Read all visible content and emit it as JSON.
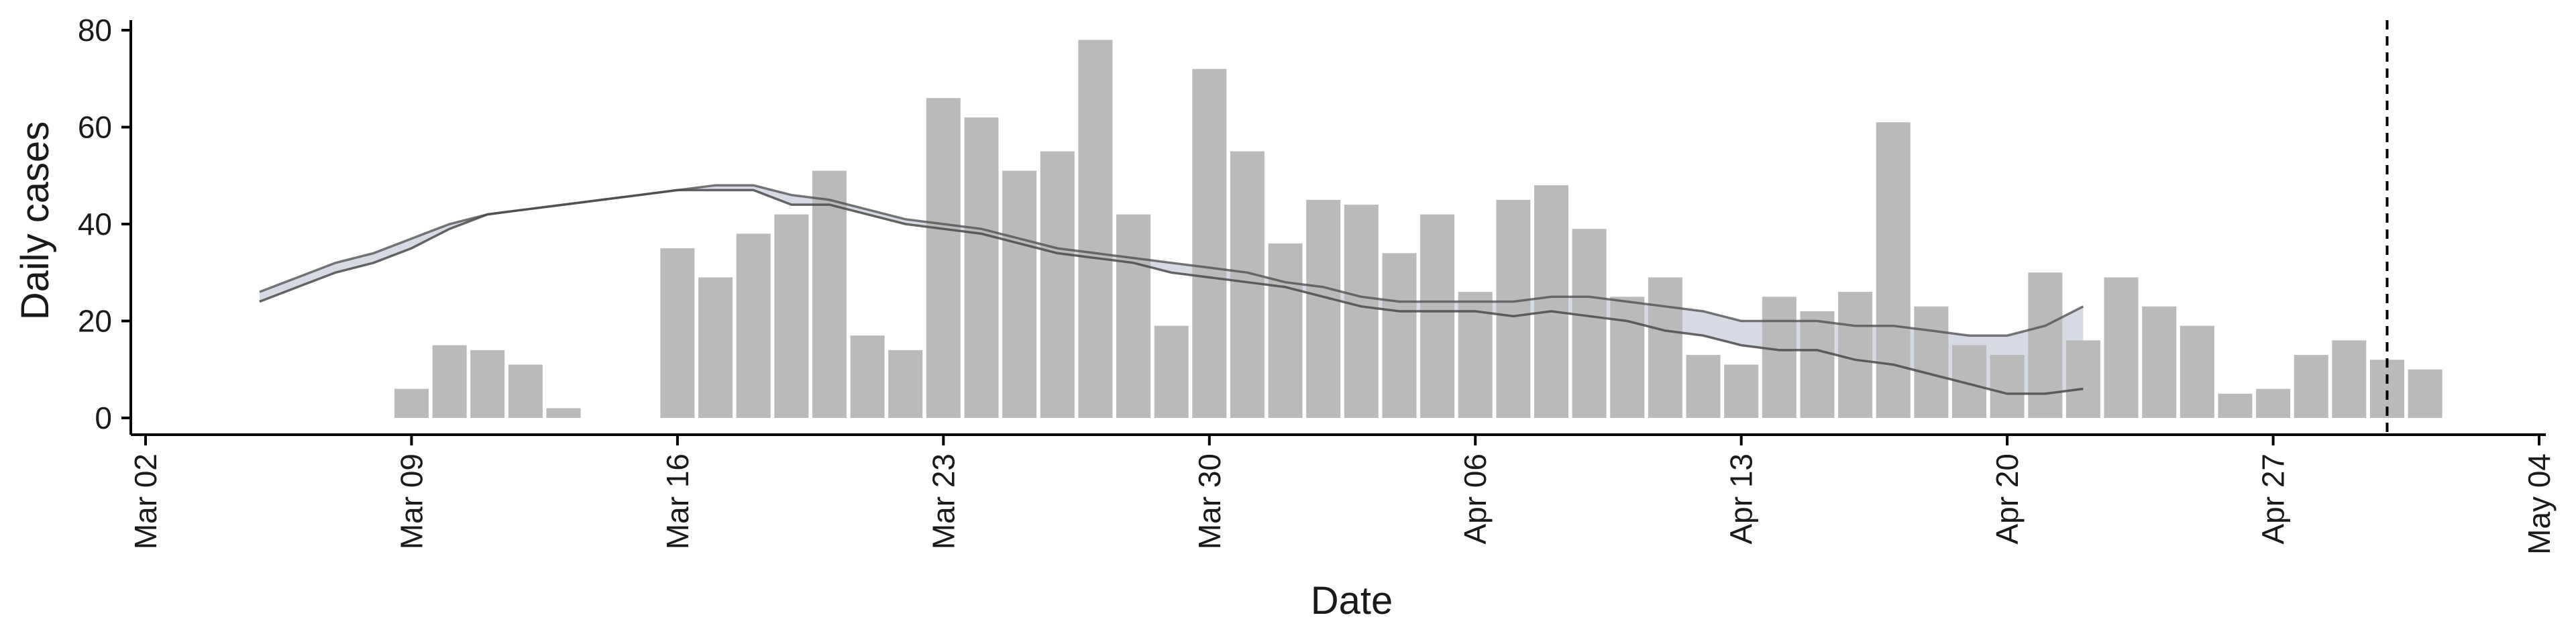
{
  "chart_data": {
    "type": "bar",
    "xlabel": "Date",
    "ylabel": "Daily cases",
    "ylim": [
      0,
      80
    ],
    "yticks": [
      0,
      20,
      40,
      60,
      80
    ],
    "xlim": [
      "2020-03-02",
      "2020-05-04"
    ],
    "x_tick_dates": [
      "2020-03-02",
      "2020-03-09",
      "2020-03-16",
      "2020-03-23",
      "2020-03-30",
      "2020-04-06",
      "2020-04-13",
      "2020-04-20",
      "2020-04-27",
      "2020-05-04"
    ],
    "x_tick_labels": [
      "Mar 02",
      "Mar 09",
      "Mar 16",
      "Mar 23",
      "Mar 30",
      "Apr 06",
      "Apr 13",
      "Apr 20",
      "Apr 27",
      "May 04"
    ],
    "grid": false,
    "colors": {
      "bars": "#bababa",
      "lines": "#4a4a4a",
      "band": "#b4bccf",
      "axis": "#000000"
    },
    "bars": {
      "name": "Daily cases",
      "x": [
        "2020-03-09",
        "2020-03-10",
        "2020-03-11",
        "2020-03-12",
        "2020-03-13",
        "2020-03-14",
        "2020-03-15",
        "2020-03-16",
        "2020-03-17",
        "2020-03-18",
        "2020-03-19",
        "2020-03-20",
        "2020-03-21",
        "2020-03-22",
        "2020-03-23",
        "2020-03-24",
        "2020-03-25",
        "2020-03-26",
        "2020-03-27",
        "2020-03-28",
        "2020-03-29",
        "2020-03-30",
        "2020-03-31",
        "2020-04-01",
        "2020-04-02",
        "2020-04-03",
        "2020-04-04",
        "2020-04-05",
        "2020-04-06",
        "2020-04-07",
        "2020-04-08",
        "2020-04-09",
        "2020-04-10",
        "2020-04-11",
        "2020-04-12",
        "2020-04-13",
        "2020-04-14",
        "2020-04-15",
        "2020-04-16",
        "2020-04-17",
        "2020-04-18",
        "2020-04-19",
        "2020-04-20",
        "2020-04-21",
        "2020-04-22",
        "2020-04-23",
        "2020-04-24",
        "2020-04-25",
        "2020-04-26",
        "2020-04-27",
        "2020-04-28",
        "2020-04-29",
        "2020-04-30",
        "2020-05-01"
      ],
      "values": [
        6,
        15,
        14,
        11,
        2,
        0,
        0,
        35,
        29,
        38,
        42,
        51,
        17,
        14,
        66,
        62,
        51,
        55,
        78,
        42,
        19,
        72,
        55,
        36,
        45,
        44,
        34,
        42,
        26,
        45,
        48,
        39,
        25,
        29,
        13,
        11,
        25,
        22,
        26,
        61,
        23,
        15,
        13,
        30,
        16,
        29,
        23,
        19,
        5,
        6,
        13,
        16,
        12,
        10
      ]
    },
    "band": {
      "x": [
        "2020-03-05",
        "2020-03-06",
        "2020-03-07",
        "2020-03-08",
        "2020-03-09",
        "2020-03-10",
        "2020-03-11",
        "2020-03-12",
        "2020-03-13",
        "2020-03-14",
        "2020-03-15",
        "2020-03-16",
        "2020-03-17",
        "2020-03-18",
        "2020-03-19",
        "2020-03-20",
        "2020-03-21",
        "2020-03-22",
        "2020-03-23",
        "2020-03-24",
        "2020-03-25",
        "2020-03-26",
        "2020-03-27",
        "2020-03-28",
        "2020-03-29",
        "2020-03-30",
        "2020-03-31",
        "2020-04-01",
        "2020-04-02",
        "2020-04-03",
        "2020-04-04",
        "2020-04-05",
        "2020-04-06",
        "2020-04-07",
        "2020-04-08",
        "2020-04-09",
        "2020-04-10",
        "2020-04-11",
        "2020-04-12",
        "2020-04-13",
        "2020-04-14",
        "2020-04-15",
        "2020-04-16",
        "2020-04-17",
        "2020-04-18",
        "2020-04-19",
        "2020-04-20",
        "2020-04-21",
        "2020-04-22"
      ],
      "upper": [
        26,
        29,
        32,
        34,
        37,
        40,
        42,
        43,
        44,
        45,
        46,
        47,
        48,
        48,
        46,
        45,
        43,
        41,
        40,
        39,
        37,
        35,
        34,
        33,
        32,
        31,
        30,
        28,
        27,
        25,
        24,
        24,
        24,
        24,
        25,
        25,
        24,
        23,
        22,
        20,
        20,
        20,
        19,
        19,
        18,
        17,
        17,
        19,
        23
      ],
      "lower": [
        24,
        27,
        30,
        32,
        35,
        39,
        42,
        43,
        44,
        45,
        46,
        47,
        47,
        47,
        44,
        44,
        42,
        40,
        39,
        38,
        36,
        34,
        33,
        32,
        30,
        29,
        28,
        27,
        25,
        23,
        22,
        22,
        22,
        21,
        22,
        21,
        20,
        18,
        17,
        15,
        14,
        14,
        12,
        11,
        9,
        7,
        5,
        5,
        6
      ]
    }
  },
  "annotations": {
    "vline_date": "2020-04-30"
  }
}
